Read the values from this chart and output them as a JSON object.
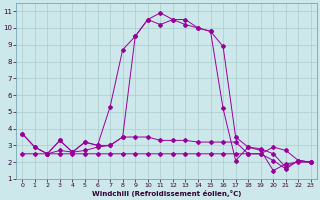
{
  "xlabel": "Windchill (Refroidissement éolien,°C)",
  "background_color": "#cce8ea",
  "line_color": "#990099",
  "grid_color": "#aacccc",
  "xlim_min": -0.5,
  "xlim_max": 23.5,
  "ylim_min": 1.0,
  "ylim_max": 11.5,
  "yticks": [
    1,
    2,
    3,
    4,
    5,
    6,
    7,
    8,
    9,
    10,
    11
  ],
  "xticks": [
    0,
    1,
    2,
    3,
    4,
    5,
    6,
    7,
    8,
    9,
    10,
    11,
    12,
    13,
    14,
    15,
    16,
    17,
    18,
    19,
    20,
    21,
    22,
    23
  ],
  "curve_main_x": [
    0,
    1,
    2,
    3,
    4,
    5,
    6,
    7,
    8,
    9,
    10,
    11,
    12,
    13,
    14,
    15,
    16,
    17,
    18,
    19,
    20,
    21,
    22,
    23
  ],
  "curve_main_y": [
    3.7,
    2.9,
    2.5,
    3.3,
    2.6,
    3.2,
    3.0,
    5.3,
    8.7,
    9.5,
    10.5,
    10.9,
    10.5,
    10.5,
    10.0,
    9.8,
    8.9,
    3.5,
    2.9,
    2.8,
    2.5,
    1.7,
    2.1,
    2.0
  ],
  "curve1_x": [
    0,
    1,
    2,
    3,
    4,
    5,
    6,
    7,
    8,
    9,
    10,
    11,
    12,
    13,
    14,
    15,
    16,
    17,
    18,
    19,
    20,
    21,
    22,
    23
  ],
  "curve1_y": [
    3.7,
    2.9,
    2.5,
    2.7,
    2.6,
    2.7,
    2.9,
    3.0,
    3.5,
    9.5,
    10.5,
    10.2,
    10.5,
    10.2,
    10.0,
    9.8,
    5.2,
    2.1,
    2.9,
    2.7,
    1.5,
    1.9,
    2.0,
    2.0
  ],
  "curve2_x": [
    0,
    1,
    2,
    3,
    4,
    5,
    6,
    7,
    8,
    9,
    10,
    11,
    12,
    13,
    14,
    15,
    16,
    17,
    18,
    19,
    20,
    21,
    22,
    23
  ],
  "curve2_y": [
    2.5,
    2.5,
    2.5,
    2.5,
    2.5,
    2.5,
    2.5,
    2.5,
    2.5,
    2.5,
    2.5,
    2.5,
    2.5,
    2.5,
    2.5,
    2.5,
    2.5,
    2.5,
    2.5,
    2.5,
    2.1,
    1.6,
    2.1,
    2.0
  ],
  "curve3_x": [
    2,
    3,
    4,
    5,
    6,
    7,
    8,
    9,
    10,
    11,
    12,
    13,
    14,
    15,
    16,
    17,
    18,
    19,
    20,
    21,
    22,
    23
  ],
  "curve3_y": [
    2.5,
    3.3,
    2.6,
    3.2,
    3.0,
    3.0,
    3.5,
    3.5,
    3.5,
    3.3,
    3.3,
    3.3,
    3.2,
    3.2,
    3.2,
    3.2,
    2.5,
    2.5,
    2.9,
    2.7,
    2.1,
    2.0
  ]
}
